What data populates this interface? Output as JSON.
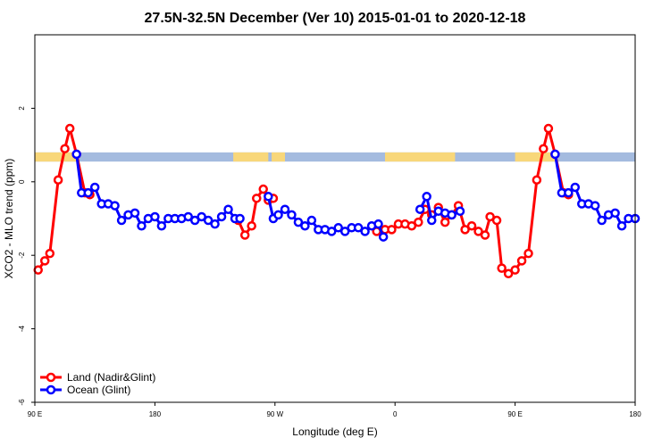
{
  "chart_data": {
    "type": "line",
    "title": "27.5N-32.5N December (Ver 10)   2015-01-01 to 2020-12-18",
    "xlabel": "Longitude (deg E)",
    "ylabel": "XCO2 - MLO trend (ppm)",
    "xlim": [
      90,
      450
    ],
    "ylim": [
      -6,
      4
    ],
    "x_ticks": [
      {
        "value": 90,
        "label": "90 E"
      },
      {
        "value": 162,
        "label": "180"
      },
      {
        "value": 234,
        "label": "90 W"
      },
      {
        "value": 306,
        "label": "0"
      },
      {
        "value": 378,
        "label": "90 E"
      },
      {
        "value": 450,
        "label": "180"
      }
    ],
    "y_ticks": [
      {
        "value": 2,
        "label": "2"
      },
      {
        "value": 0,
        "label": "0"
      },
      {
        "value": -2,
        "label": "-2"
      },
      {
        "value": -4,
        "label": "-4"
      },
      {
        "value": -6,
        "label": "-6"
      }
    ],
    "land_ocean_strip": {
      "y_range": [
        0.55,
        0.8
      ],
      "ocean_color": "#a4bbdf",
      "land_color": "#f8d77a",
      "land_segments": [
        [
          90,
          115
        ],
        [
          209,
          230
        ],
        [
          232,
          240
        ],
        [
          300,
          342
        ],
        [
          378,
          403
        ]
      ]
    },
    "legend_position": "bottom-left",
    "series": [
      {
        "name": "Land (Nadir&Glint)",
        "color": "#ff0000",
        "segments": [
          [
            [
              92,
              -2.4
            ],
            [
              96,
              -2.15
            ],
            [
              99,
              -1.95
            ],
            [
              104,
              0.05
            ],
            [
              108,
              0.9
            ],
            [
              111,
              1.45
            ],
            [
              115,
              0.75
            ],
            [
              120,
              -0.3
            ],
            [
              123,
              -0.35
            ]
          ],
          [
            [
              212,
              -1.05
            ],
            [
              216,
              -1.45
            ],
            [
              220,
              -1.2
            ],
            [
              223,
              -0.45
            ],
            [
              227,
              -0.2
            ],
            [
              230,
              -0.5
            ],
            [
              233,
              -0.45
            ]
          ],
          [
            [
              295,
              -1.35
            ],
            [
              300,
              -1.3
            ],
            [
              304,
              -1.3
            ],
            [
              308,
              -1.15
            ],
            [
              312,
              -1.15
            ],
            [
              316,
              -1.2
            ],
            [
              320,
              -1.1
            ],
            [
              324,
              -0.75
            ],
            [
              328,
              -0.9
            ],
            [
              332,
              -0.7
            ],
            [
              336,
              -1.1
            ],
            [
              340,
              -0.9
            ],
            [
              344,
              -0.65
            ],
            [
              348,
              -1.3
            ],
            [
              352,
              -1.2
            ],
            [
              356,
              -1.35
            ],
            [
              360,
              -1.45
            ],
            [
              363,
              -0.95
            ],
            [
              367,
              -1.05
            ],
            [
              370,
              -2.35
            ],
            [
              374,
              -2.5
            ],
            [
              378,
              -2.4
            ],
            [
              382,
              -2.15
            ],
            [
              386,
              -1.95
            ],
            [
              391,
              0.05
            ],
            [
              395,
              0.9
            ],
            [
              398,
              1.45
            ],
            [
              402,
              0.75
            ],
            [
              407,
              -0.3
            ],
            [
              410,
              -0.35
            ]
          ]
        ]
      },
      {
        "name": "Ocean (Glint)",
        "color": "#0000ff",
        "segments": [
          [
            [
              115,
              0.75
            ],
            [
              118,
              -0.3
            ],
            [
              122,
              -0.3
            ],
            [
              126,
              -0.15
            ],
            [
              130,
              -0.6
            ],
            [
              134,
              -0.6
            ],
            [
              138,
              -0.65
            ],
            [
              142,
              -1.05
            ],
            [
              146,
              -0.9
            ],
            [
              150,
              -0.85
            ],
            [
              154,
              -1.2
            ],
            [
              158,
              -1.0
            ],
            [
              162,
              -0.95
            ],
            [
              166,
              -1.2
            ],
            [
              170,
              -1.0
            ],
            [
              174,
              -1.0
            ],
            [
              178,
              -1.0
            ],
            [
              182,
              -0.95
            ],
            [
              186,
              -1.05
            ],
            [
              190,
              -0.95
            ],
            [
              194,
              -1.05
            ],
            [
              198,
              -1.15
            ],
            [
              202,
              -0.95
            ],
            [
              206,
              -0.75
            ],
            [
              210,
              -1.0
            ],
            [
              213,
              -1.0
            ]
          ],
          [
            [
              230,
              -0.4
            ],
            [
              233,
              -1.0
            ],
            [
              236,
              -0.9
            ],
            [
              240,
              -0.75
            ],
            [
              244,
              -0.9
            ],
            [
              248,
              -1.1
            ],
            [
              252,
              -1.2
            ],
            [
              256,
              -1.05
            ],
            [
              260,
              -1.3
            ],
            [
              264,
              -1.3
            ],
            [
              268,
              -1.35
            ],
            [
              272,
              -1.25
            ],
            [
              276,
              -1.35
            ],
            [
              280,
              -1.25
            ],
            [
              284,
              -1.25
            ],
            [
              288,
              -1.35
            ],
            [
              292,
              -1.2
            ],
            [
              296,
              -1.15
            ],
            [
              299,
              -1.5
            ]
          ],
          [
            [
              321,
              -0.75
            ],
            [
              325,
              -0.4
            ],
            [
              328,
              -1.05
            ],
            [
              332,
              -0.8
            ],
            [
              336,
              -0.85
            ],
            [
              340,
              -0.9
            ],
            [
              345,
              -0.8
            ]
          ],
          [
            [
              402,
              0.75
            ],
            [
              406,
              -0.3
            ],
            [
              410,
              -0.3
            ],
            [
              414,
              -0.15
            ],
            [
              418,
              -0.6
            ],
            [
              422,
              -0.6
            ],
            [
              426,
              -0.65
            ],
            [
              430,
              -1.05
            ],
            [
              434,
              -0.9
            ],
            [
              438,
              -0.85
            ],
            [
              442,
              -1.2
            ],
            [
              446,
              -1.0
            ],
            [
              450,
              -1.0
            ]
          ]
        ]
      }
    ]
  }
}
